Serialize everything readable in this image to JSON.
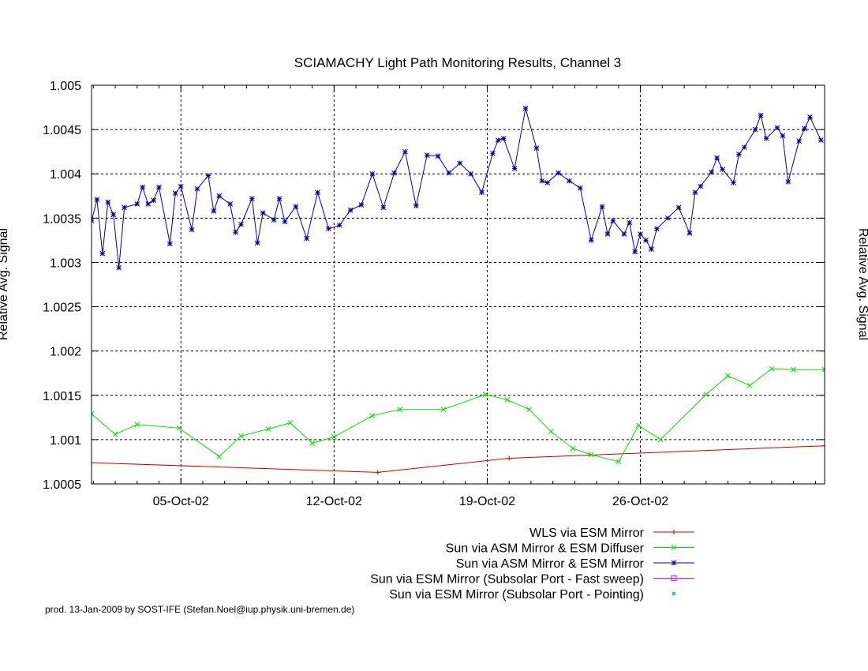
{
  "chart_data": {
    "type": "line",
    "title": "SCIAMACHY Light Path Monitoring Results, Channel 3",
    "ylabel": "Relative Avg. Signal",
    "y2label": "Relative Avg. Signal",
    "xlabel": "",
    "xlim": [
      "2002-09-30T22:00",
      "2002-11-03T10:00"
    ],
    "ylim": [
      1.0005,
      1.005
    ],
    "yticks": [
      1.0005,
      1.001,
      1.0015,
      1.002,
      1.0025,
      1.003,
      1.0035,
      1.004,
      1.0045,
      1.005
    ],
    "ytick_labels": [
      "1.0005",
      "1.001",
      "1.0015",
      "1.002",
      "1.0025",
      "1.003",
      "1.0035",
      "1.004",
      "1.0045",
      "1.005"
    ],
    "xticks": [
      {
        "date": "2002-10-05",
        "label": "05-Oct-02"
      },
      {
        "date": "2002-10-12",
        "label": "12-Oct-02"
      },
      {
        "date": "2002-10-19",
        "label": "19-Oct-02"
      },
      {
        "date": "2002-10-26",
        "label": "26-Oct-02"
      }
    ],
    "grid": true,
    "legend_position": "bottom-right, below plot",
    "series": [
      {
        "name": "WLS via ESM Mirror",
        "color": "#cc0000",
        "marker": "plus",
        "x": [
          "2002-09-30T22:00",
          "2002-10-14T00:00",
          "2002-10-20T00:00",
          "2002-11-03T10:00"
        ],
        "y": [
          1.00074,
          1.00063,
          1.00079,
          1.00093
        ]
      },
      {
        "name": "Sun via ASM Mirror & ESM Diffuser",
        "color": "#00e000",
        "marker": "cross",
        "x": [
          "2002-09-30T22:00",
          "2002-10-02T00:00",
          "2002-10-03T00:00",
          "2002-10-04T22:00",
          "2002-10-06T18:00",
          "2002-10-07T18:00",
          "2002-10-09T00:00",
          "2002-10-10T00:00",
          "2002-10-11T00:00",
          "2002-10-12T00:00",
          "2002-10-13T18:00",
          "2002-10-15T00:00",
          "2002-10-17T00:00",
          "2002-10-18T22:00",
          "2002-10-19T22:00",
          "2002-10-20T22:00",
          "2002-10-21T22:00",
          "2002-10-22T22:00",
          "2002-10-23T18:00",
          "2002-10-25T00:00",
          "2002-10-25T22:00",
          "2002-10-26T22:00",
          "2002-10-29T00:00",
          "2002-10-30T00:00",
          "2002-10-31T00:00",
          "2002-11-01T00:00",
          "2002-11-02T00:00",
          "2002-11-03T10:00"
        ],
        "y": [
          1.00129,
          1.00106,
          1.00117,
          1.00113,
          1.00081,
          1.00104,
          1.00112,
          1.00119,
          1.00096,
          1.00103,
          1.00127,
          1.00134,
          1.00134,
          1.00151,
          1.00145,
          1.00134,
          1.00109,
          1.0009,
          1.00083,
          1.00075,
          1.00116,
          1.001,
          1.00151,
          1.00172,
          1.00161,
          1.0018,
          1.00179,
          1.00179
        ]
      },
      {
        "name": "Sun via ASM Mirror & ESM Mirror",
        "color": "#0000aa",
        "marker": "star",
        "x": [
          "2002-09-30T22:00",
          "2002-10-01T04:00",
          "2002-10-01T10:00",
          "2002-10-01T16:00",
          "2002-10-01T22:00",
          "2002-10-02T04:00",
          "2002-10-02T10:00",
          "2002-10-03T00:00",
          "2002-10-03T06:00",
          "2002-10-03T12:00",
          "2002-10-03T18:00",
          "2002-10-04T00:00",
          "2002-10-04T12:00",
          "2002-10-04T18:00",
          "2002-10-05T00:00",
          "2002-10-05T12:00",
          "2002-10-05T18:00",
          "2002-10-06T06:00",
          "2002-10-06T12:00",
          "2002-10-06T18:00",
          "2002-10-07T06:00",
          "2002-10-07T12:00",
          "2002-10-07T18:00",
          "2002-10-08T06:00",
          "2002-10-08T12:00",
          "2002-10-08T18:00",
          "2002-10-09T06:00",
          "2002-10-09T12:00",
          "2002-10-09T18:00",
          "2002-10-10T06:00",
          "2002-10-10T18:00",
          "2002-10-11T06:00",
          "2002-10-11T18:00",
          "2002-10-12T06:00",
          "2002-10-12T18:00",
          "2002-10-13T06:00",
          "2002-10-13T18:00",
          "2002-10-14T06:00",
          "2002-10-14T18:00",
          "2002-10-15T06:00",
          "2002-10-15T18:00",
          "2002-10-16T06:00",
          "2002-10-16T18:00",
          "2002-10-17T06:00",
          "2002-10-17T18:00",
          "2002-10-18T06:00",
          "2002-10-18T18:00",
          "2002-10-19T06:00",
          "2002-10-19T12:00",
          "2002-10-19T18:00",
          "2002-10-20T06:00",
          "2002-10-20T18:00",
          "2002-10-21T06:00",
          "2002-10-21T12:00",
          "2002-10-21T18:00",
          "2002-10-22T06:00",
          "2002-10-22T18:00",
          "2002-10-23T06:00",
          "2002-10-23T18:00",
          "2002-10-24T06:00",
          "2002-10-24T12:00",
          "2002-10-24T18:00",
          "2002-10-25T06:00",
          "2002-10-25T12:00",
          "2002-10-25T18:00",
          "2002-10-26T00:00",
          "2002-10-26T06:00",
          "2002-10-26T12:00",
          "2002-10-26T18:00",
          "2002-10-27T06:00",
          "2002-10-27T18:00",
          "2002-10-28T06:00",
          "2002-10-28T12:00",
          "2002-10-28T18:00",
          "2002-10-29T06:00",
          "2002-10-29T12:00",
          "2002-10-29T18:00",
          "2002-10-30T06:00",
          "2002-10-30T12:00",
          "2002-10-30T18:00",
          "2002-10-31T06:00",
          "2002-10-31T12:00",
          "2002-10-31T18:00",
          "2002-11-01T06:00",
          "2002-11-01T12:00",
          "2002-11-01T18:00",
          "2002-11-02T06:00",
          "2002-11-02T12:00",
          "2002-11-02T18:00",
          "2002-11-03T06:00"
        ],
        "y": [
          1.00347,
          1.00371,
          1.0031,
          1.00368,
          1.00354,
          1.00294,
          1.00362,
          1.00366,
          1.00385,
          1.00366,
          1.0037,
          1.00385,
          1.00321,
          1.00378,
          1.00386,
          1.00337,
          1.00383,
          1.00398,
          1.00358,
          1.00375,
          1.00366,
          1.00334,
          1.00343,
          1.00372,
          1.00322,
          1.00356,
          1.00348,
          1.00372,
          1.00346,
          1.00363,
          1.00327,
          1.00379,
          1.00338,
          1.00342,
          1.00359,
          1.00365,
          1.004,
          1.00362,
          1.00401,
          1.00425,
          1.00364,
          1.00421,
          1.0042,
          1.00401,
          1.00412,
          1.004,
          1.00379,
          1.00423,
          1.00438,
          1.0044,
          1.00406,
          1.00474,
          1.00429,
          1.00392,
          1.0039,
          1.00401,
          1.00392,
          1.00384,
          1.00325,
          1.00363,
          1.00332,
          1.00347,
          1.00332,
          1.00345,
          1.00312,
          1.00332,
          1.00325,
          1.00315,
          1.00338,
          1.0035,
          1.00362,
          1.00333,
          1.00379,
          1.00386,
          1.00402,
          1.00418,
          1.00405,
          1.0039,
          1.00422,
          1.0043,
          1.0045,
          1.00466,
          1.0044,
          1.00452,
          1.00443,
          1.00391,
          1.00437,
          1.00451,
          1.00464,
          1.00438
        ]
      },
      {
        "name": "Sun via ESM Mirror (Subsolar Port - Fast sweep)",
        "color": "#ff00ff",
        "marker": "square",
        "x": [],
        "y": []
      },
      {
        "name": "Sun via ESM Mirror (Subsolar Port - Pointing)",
        "color": "#00ccff",
        "marker": "dot",
        "x": [],
        "y": []
      }
    ]
  },
  "footer": "prod. 13-Jan-2009 by SOST-IFE (Stefan.Noel@iup.physik.uni-bremen.de)"
}
